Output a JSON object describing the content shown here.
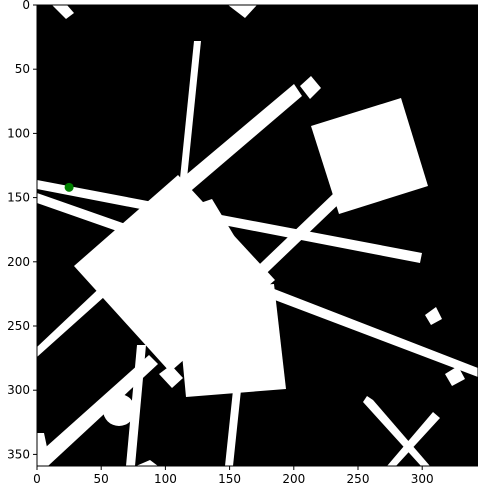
{
  "chart_data": {
    "type": "scatter",
    "title": "",
    "xlabel": "",
    "ylabel": "",
    "xlim": [
      0,
      343
    ],
    "ylim": [
      358,
      0
    ],
    "x_ticks": [
      0,
      50,
      100,
      150,
      200,
      250,
      300
    ],
    "y_ticks": [
      0,
      50,
      100,
      150,
      200,
      250,
      300,
      350
    ],
    "x_tick_labels": [
      "0",
      "50",
      "100",
      "150",
      "200",
      "250",
      "300"
    ],
    "y_tick_labels": [
      "0",
      "50",
      "100",
      "150",
      "200",
      "250",
      "300",
      "350"
    ],
    "grid": false,
    "background_image": "binary occupancy map: white obstacles on black background",
    "points": [
      {
        "x": 25,
        "y": 142,
        "color": "#008000"
      }
    ]
  },
  "colors": {
    "background": "#000000",
    "obstacle": "#ffffff",
    "marker": "#008000"
  }
}
